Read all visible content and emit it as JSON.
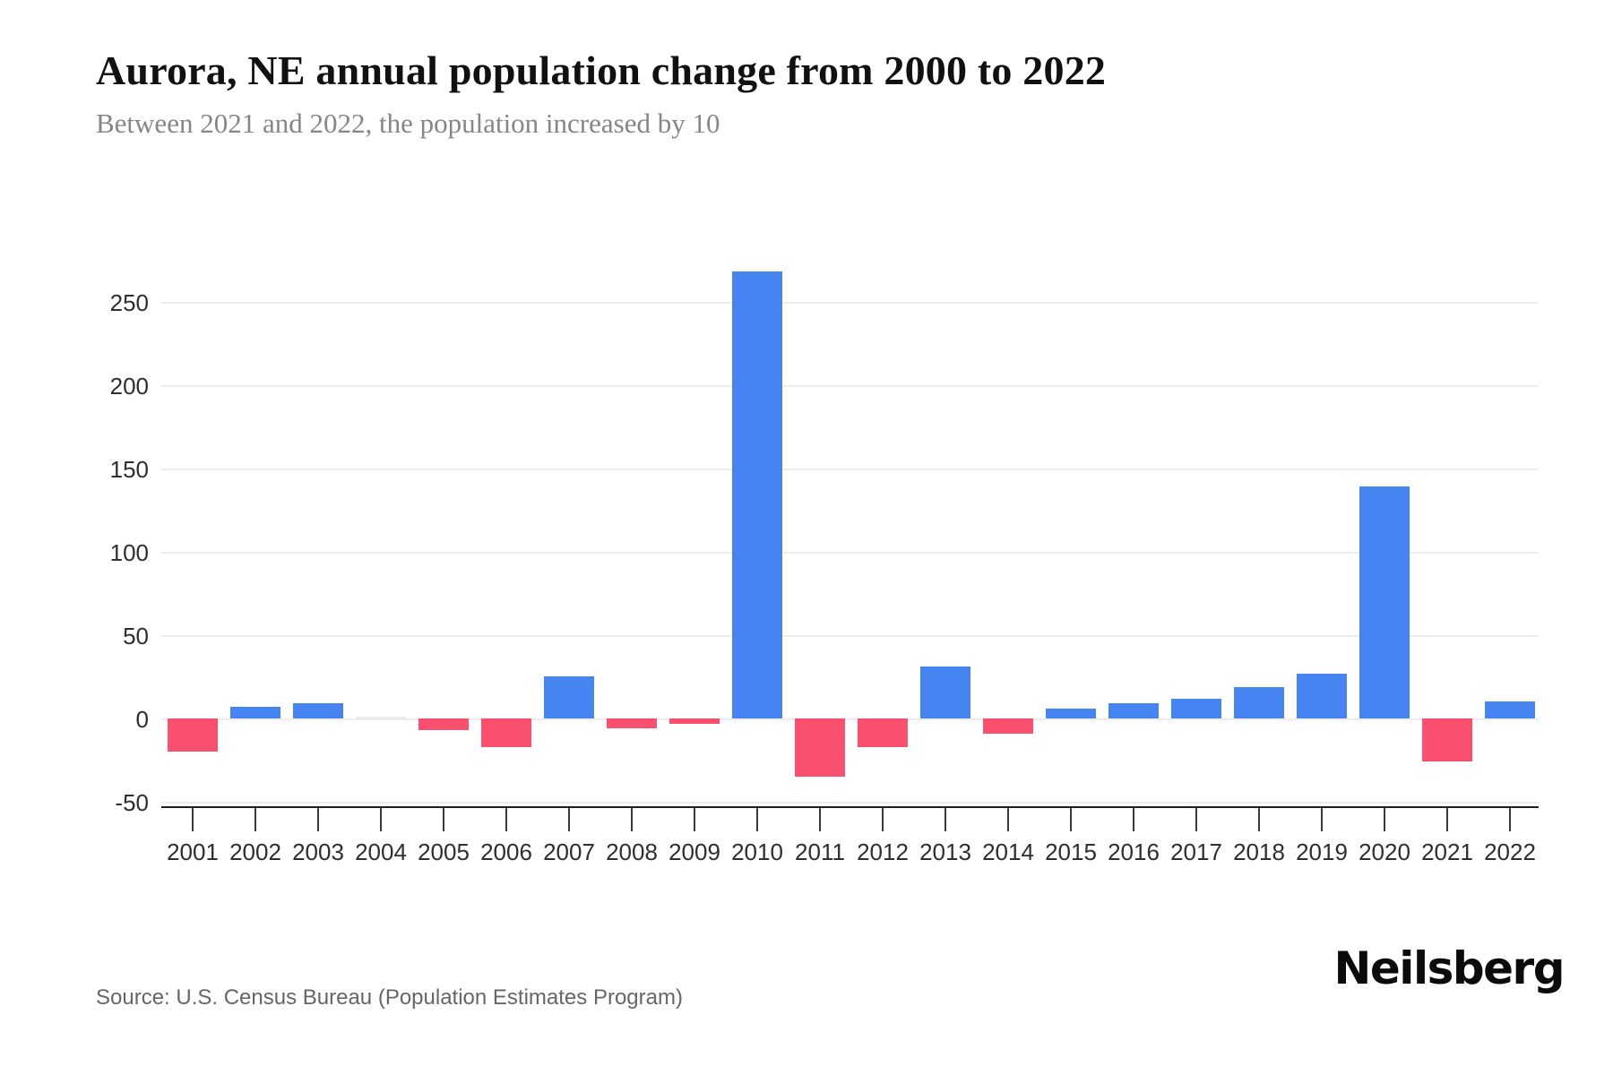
{
  "header": {
    "title": "Aurora, NE annual population change from 2000 to 2022",
    "subtitle": "Between 2021 and 2022, the population increased by 10"
  },
  "footer": {
    "source": "Source: U.S. Census Bureau (Population Estimates Program)",
    "brand": "Neilsberg"
  },
  "chart_data": {
    "type": "bar",
    "title": "Aurora, NE annual population change from 2000 to 2022",
    "categories": [
      "2001",
      "2002",
      "2003",
      "2004",
      "2005",
      "2006",
      "2007",
      "2008",
      "2009",
      "2010",
      "2011",
      "2012",
      "2013",
      "2014",
      "2015",
      "2016",
      "2017",
      "2018",
      "2019",
      "2020",
      "2021",
      "2022"
    ],
    "values": [
      -20,
      7,
      9,
      0,
      -7,
      -17,
      25,
      -6,
      -3,
      268,
      -35,
      -17,
      31,
      -9,
      6,
      9,
      12,
      19,
      27,
      139,
      -26,
      10
    ],
    "xlabel": "",
    "ylabel": "",
    "ylim": [
      -50,
      280
    ],
    "yticks": [
      -50,
      0,
      50,
      100,
      150,
      200,
      250
    ],
    "grid": true,
    "legend": false,
    "colors": {
      "positive": "#4584f1",
      "negative": "#f8506e",
      "zero": "#ececec",
      "gridline": "#ededed",
      "axis": "#1f1f1f"
    }
  }
}
